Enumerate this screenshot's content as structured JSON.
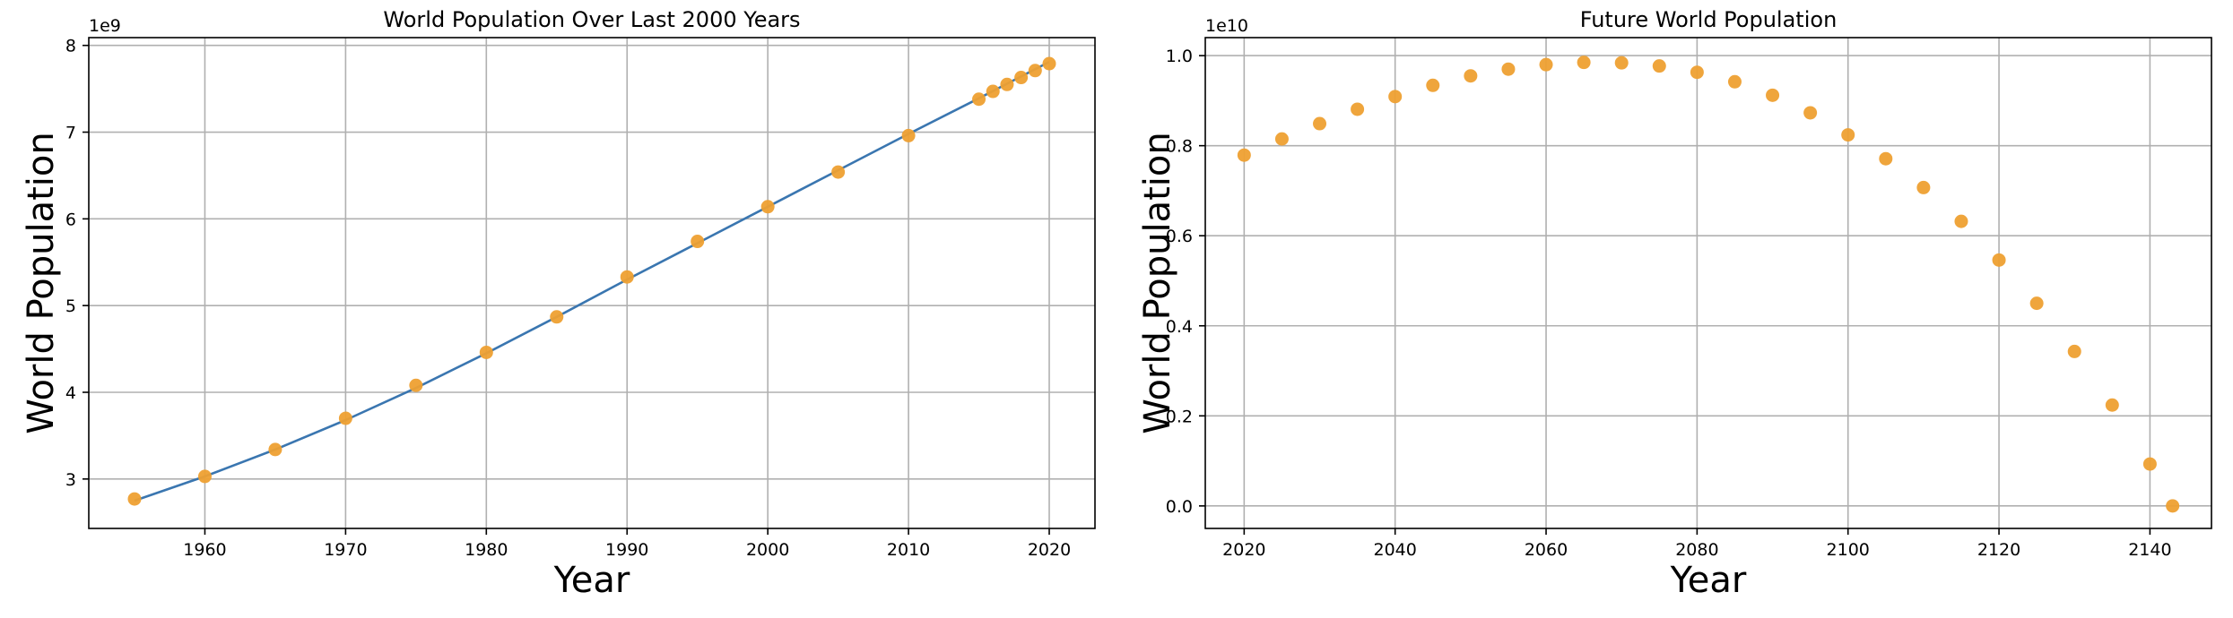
{
  "colors": {
    "line": "#3a76b0",
    "point": "#eea032",
    "grid": "#b0b0b0",
    "axes": "#000000"
  },
  "chart_data": [
    {
      "type": "scatter",
      "title": "World Population Over Last 2000 Years",
      "xlabel": "Year",
      "ylabel": "World Population",
      "y_offset_text": "1e9",
      "xlim": [
        1951.75,
        2023.25
      ],
      "ylim": [
        2.43,
        8.09
      ],
      "x_ticks": [
        1960,
        1970,
        1980,
        1990,
        2000,
        2010,
        2020
      ],
      "y_ticks": [
        3,
        4,
        5,
        6,
        7,
        8
      ],
      "grid": true,
      "series": [
        {
          "type": "scatter",
          "x": [
            1955,
            1960,
            1965,
            1970,
            1975,
            1980,
            1985,
            1990,
            1995,
            2000,
            2005,
            2010,
            2015,
            2016,
            2017,
            2018,
            2019,
            2020
          ],
          "y": [
            2.77,
            3.03,
            3.34,
            3.7,
            4.08,
            4.46,
            4.87,
            5.33,
            5.74,
            6.14,
            6.54,
            6.96,
            7.38,
            7.47,
            7.55,
            7.63,
            7.71,
            7.79
          ]
        },
        {
          "type": "line",
          "x": [
            1955,
            1960,
            1965,
            1970,
            1975,
            1980,
            1985,
            1990,
            1995,
            2000,
            2005,
            2010,
            2015,
            2020
          ],
          "y": [
            2.75,
            3.03,
            3.34,
            3.68,
            4.05,
            4.45,
            4.87,
            5.3,
            5.72,
            6.14,
            6.56,
            6.98,
            7.39,
            7.81
          ]
        }
      ]
    },
    {
      "type": "scatter",
      "title": "Future World Population",
      "xlabel": "Year",
      "ylabel": "World Population",
      "y_offset_text": "1e10",
      "xlim": [
        2014.85,
        2148.15
      ],
      "ylim": [
        -0.05,
        1.04
      ],
      "x_ticks": [
        2020,
        2040,
        2060,
        2080,
        2100,
        2120,
        2140
      ],
      "y_ticks": [
        0.0,
        0.2,
        0.4,
        0.6,
        0.8,
        1.0
      ],
      "y_tick_labels": [
        "0.0",
        "0.2",
        "0.4",
        "0.6",
        "0.8",
        "1.0"
      ],
      "grid": true,
      "series": [
        {
          "type": "scatter",
          "x": [
            2020,
            2025,
            2030,
            2035,
            2040,
            2045,
            2050,
            2055,
            2060,
            2065,
            2070,
            2075,
            2080,
            2085,
            2090,
            2095,
            2100,
            2105,
            2110,
            2115,
            2120,
            2125,
            2130,
            2135,
            2140,
            2143
          ],
          "y": [
            0.779,
            0.815,
            0.849,
            0.881,
            0.909,
            0.934,
            0.955,
            0.97,
            0.98,
            0.985,
            0.984,
            0.977,
            0.963,
            0.942,
            0.912,
            0.873,
            0.824,
            0.771,
            0.707,
            0.632,
            0.546,
            0.45,
            0.343,
            0.224,
            0.093,
            0.0
          ]
        }
      ]
    }
  ]
}
